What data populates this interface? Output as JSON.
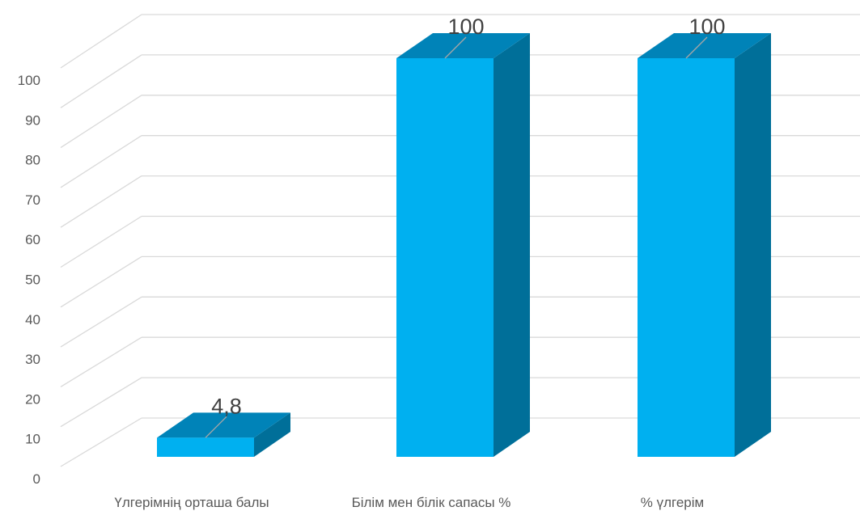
{
  "chart_data": {
    "type": "bar",
    "style": "3d-column",
    "categories": [
      "Үлгерімнің орташа балы",
      "Білім мен білік сапасы %",
      "% үлгерім"
    ],
    "values": [
      4.8,
      100,
      100
    ],
    "data_labels": [
      "4,8",
      "100",
      "100"
    ],
    "ylim": [
      0,
      100
    ],
    "yticks": [
      "0",
      "10",
      "20",
      "30",
      "40",
      "50",
      "60",
      "70",
      "80",
      "90",
      "100"
    ],
    "grid": true,
    "legend": "none",
    "colors": {
      "front": "#00B0F0",
      "top": "#0083B8",
      "side": "#006F99",
      "grid": "#D9D9D9",
      "text": "#595959",
      "label": "#404040"
    }
  }
}
